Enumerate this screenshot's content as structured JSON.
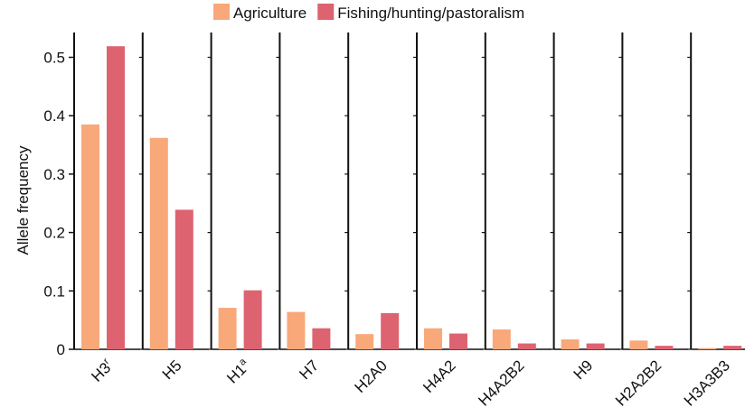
{
  "chart_data": {
    "type": "bar",
    "ylabel": "Allele frequency",
    "xlabel": "",
    "ylim": [
      0,
      0.55
    ],
    "yticks": [
      "0",
      "0.1",
      "0.2",
      "0.3",
      "0.4",
      "0.5"
    ],
    "ytick_values": [
      0,
      0.1,
      0.2,
      0.3,
      0.4,
      0.5
    ],
    "legend_position": "top-center",
    "categories": [
      {
        "base": "H3",
        "sup": "r"
      },
      {
        "base": "H5",
        "sup": ""
      },
      {
        "base": "H1",
        "sup": "a"
      },
      {
        "base": "H7",
        "sup": ""
      },
      {
        "base": "H2A0",
        "sup": ""
      },
      {
        "base": "H4A2",
        "sup": ""
      },
      {
        "base": "H4A2B2",
        "sup": ""
      },
      {
        "base": "H9",
        "sup": ""
      },
      {
        "base": "H2A2B2",
        "sup": ""
      },
      {
        "base": "H3A3B3",
        "sup": ""
      }
    ],
    "series": [
      {
        "name": "Agriculture",
        "color": "#F9A87A",
        "values": [
          0.385,
          0.362,
          0.071,
          0.064,
          0.026,
          0.036,
          0.034,
          0.017,
          0.015,
          0.002
        ]
      },
      {
        "name": "Fishing/hunting/pastoralism",
        "color": "#DD6370",
        "values": [
          0.519,
          0.239,
          0.101,
          0.036,
          0.062,
          0.027,
          0.01,
          0.01,
          0.006,
          0.006
        ]
      }
    ]
  }
}
